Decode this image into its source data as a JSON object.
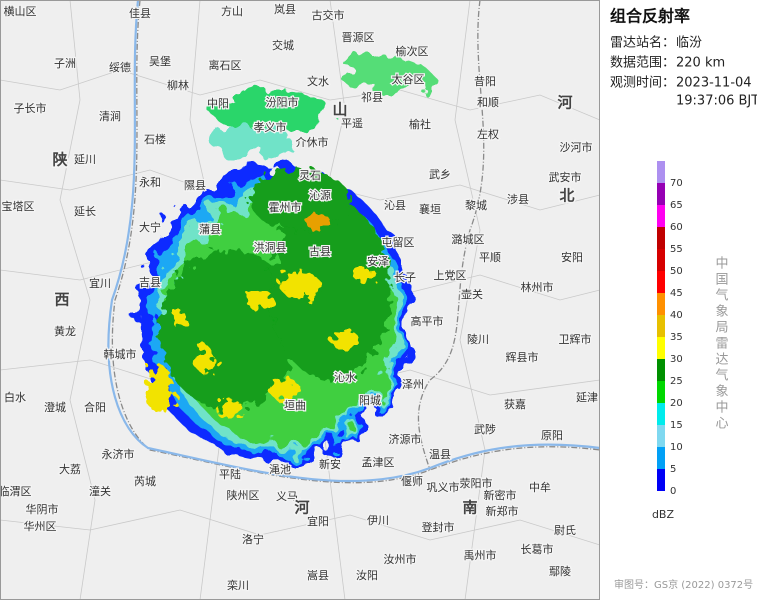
{
  "sidebar": {
    "title": "组合反射率",
    "station_label": "雷达站名：",
    "station": "临汾",
    "range_label": "数据范围：",
    "range": "220 km",
    "time_label": "观测时间：",
    "date": "2023-11-04",
    "time": "19:37:06 BJT"
  },
  "legend": {
    "unit": "dBZ",
    "levels": [
      {
        "value": 70,
        "color": "#ad90f0"
      },
      {
        "value": 65,
        "color": "#9600b4"
      },
      {
        "value": 60,
        "color": "#ff00f0"
      },
      {
        "value": 55,
        "color": "#c00000"
      },
      {
        "value": 50,
        "color": "#d60000"
      },
      {
        "value": 45,
        "color": "#ff0000"
      },
      {
        "value": 40,
        "color": "#ff9000"
      },
      {
        "value": 35,
        "color": "#e7c000"
      },
      {
        "value": 30,
        "color": "#ffff00"
      },
      {
        "value": 25,
        "color": "#009000"
      },
      {
        "value": 20,
        "color": "#00d800"
      },
      {
        "value": 15,
        "color": "#00ecec"
      },
      {
        "value": 10,
        "color": "#7fd8f0"
      },
      {
        "value": 5,
        "color": "#01a0f6"
      },
      {
        "value": 0,
        "color": "#0000f6"
      }
    ]
  },
  "credit": "中国气象局雷达气象中心",
  "approval": "审图号：GS京 (2022) 0372号",
  "provinces": [
    "陕",
    "西",
    "山",
    "河",
    "北",
    "河",
    "南"
  ],
  "places": [
    "横山区",
    "佳县",
    "方山",
    "岚县",
    "古交市",
    "子洲",
    "绥德",
    "吴堡",
    "柳林",
    "离石区",
    "交城",
    "晋源区",
    "榆次区",
    "太谷区",
    "文水",
    "汾阳市",
    "平遥",
    "祁县",
    "榆社",
    "介休市",
    "孝义市",
    "中阳",
    "子长市",
    "清涧",
    "石楼",
    "延川",
    "永和",
    "隰县",
    "延长",
    "宝塔区",
    "大宁",
    "蒲县",
    "洪洞县",
    "宜川",
    "吉县",
    "黄龙",
    "韩城市",
    "白水",
    "澄城",
    "合阳",
    "大荔",
    "潼关",
    "华阴市",
    "华州区",
    "临渭区",
    "永济市",
    "芮城",
    "平陆",
    "陕州区",
    "渑池",
    "义马",
    "新安",
    "孟津区",
    "济源市",
    "温县",
    "武陟",
    "荥阳市",
    "巩义市",
    "偃师",
    "宜阳",
    "洛宁",
    "栾川",
    "嵩县",
    "汝阳",
    "汝州市",
    "伊川",
    "登封市",
    "新郑市",
    "新密市",
    "长葛市",
    "禹州市",
    "鄢陵",
    "尉氏",
    "中牟",
    "原阳",
    "延津",
    "获嘉",
    "辉县市",
    "卫辉市",
    "林州市",
    "安阳",
    "涉县",
    "武安市",
    "沙河市",
    "平顺",
    "壶关",
    "陵川",
    "高平市",
    "泽州",
    "沁水",
    "阳城",
    "垣曲",
    "沁源",
    "沁县",
    "襄垣",
    "武乡",
    "黎城",
    "潞城区",
    "屯留区",
    "长子",
    "上党区",
    "灵石",
    "霍州市",
    "古县",
    "安泽",
    "昔阳",
    "和顺",
    "左权"
  ]
}
